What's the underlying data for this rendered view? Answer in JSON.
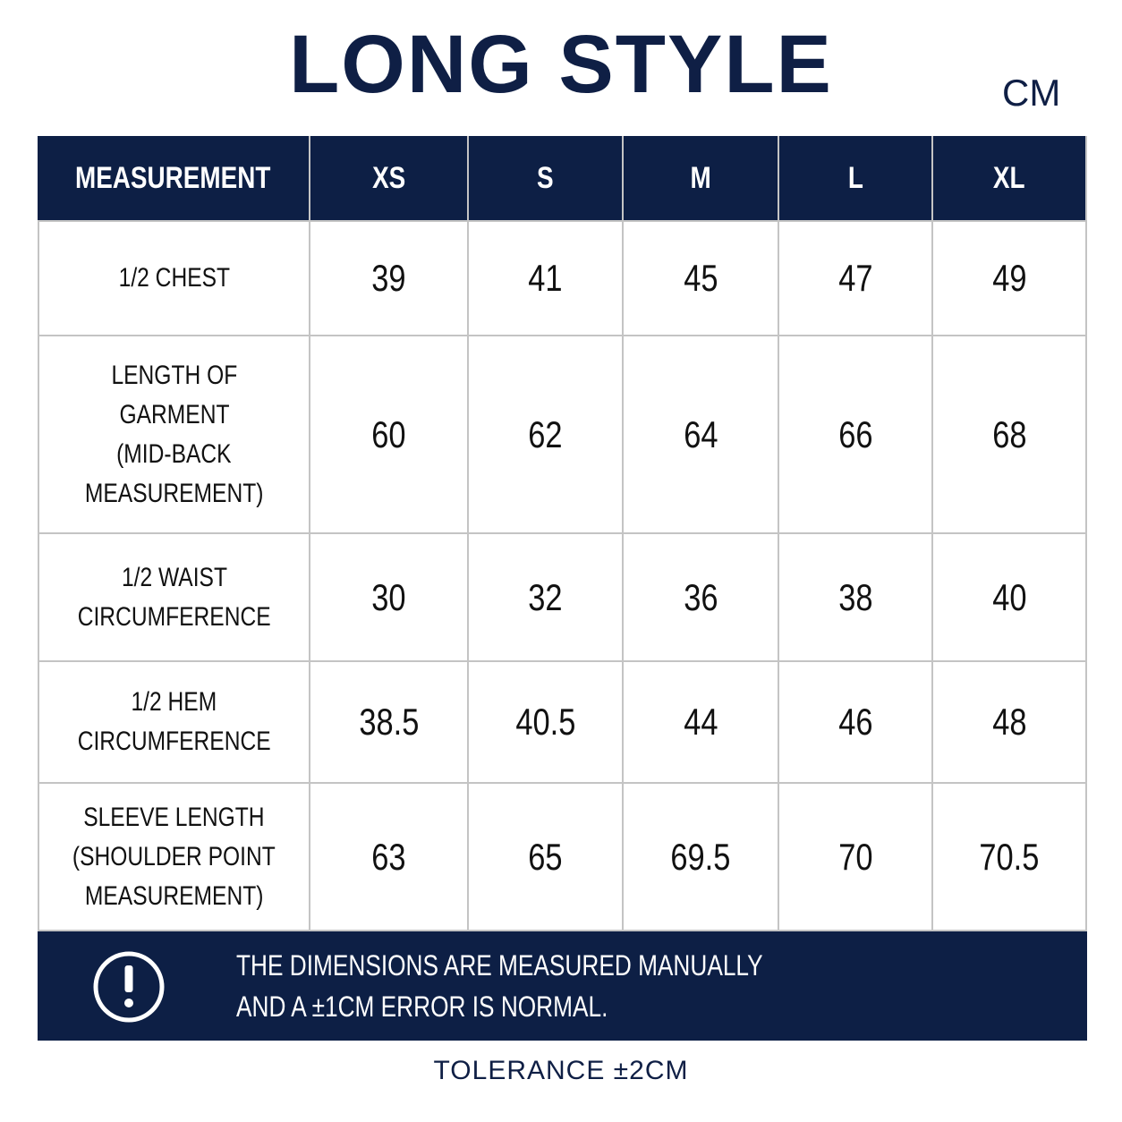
{
  "header": {
    "title": "LONG STYLE",
    "unit": "CM"
  },
  "table": {
    "columns": [
      "MEASUREMENT",
      "XS",
      "S",
      "M",
      "L",
      "XL"
    ],
    "rows": [
      {
        "label": [
          "1/2 CHEST"
        ],
        "values": [
          39,
          41,
          45,
          47,
          49
        ]
      },
      {
        "label": [
          "LENGTH OF",
          "GARMENT",
          "(MID-BACK",
          "MEASUREMENT)"
        ],
        "values": [
          60,
          62,
          64,
          66,
          68
        ]
      },
      {
        "label": [
          "1/2 WAIST",
          "CIRCUMFERENCE"
        ],
        "values": [
          30,
          32,
          36,
          38,
          40
        ]
      },
      {
        "label": [
          "1/2 HEM",
          "CIRCUMFERENCE"
        ],
        "values": [
          38.5,
          40.5,
          44,
          46,
          48
        ]
      },
      {
        "label": [
          "SLEEVE LENGTH",
          "(SHOULDER POINT",
          "MEASUREMENT)"
        ],
        "values": [
          63,
          65,
          69.5,
          70,
          70.5
        ]
      }
    ]
  },
  "notice": {
    "lines": [
      "THE DIMENSIONS ARE MEASURED MANUALLY",
      "AND A  ±1CM ERROR IS NORMAL."
    ]
  },
  "footer": {
    "tolerance": "TOLERANCE ±2CM"
  }
}
